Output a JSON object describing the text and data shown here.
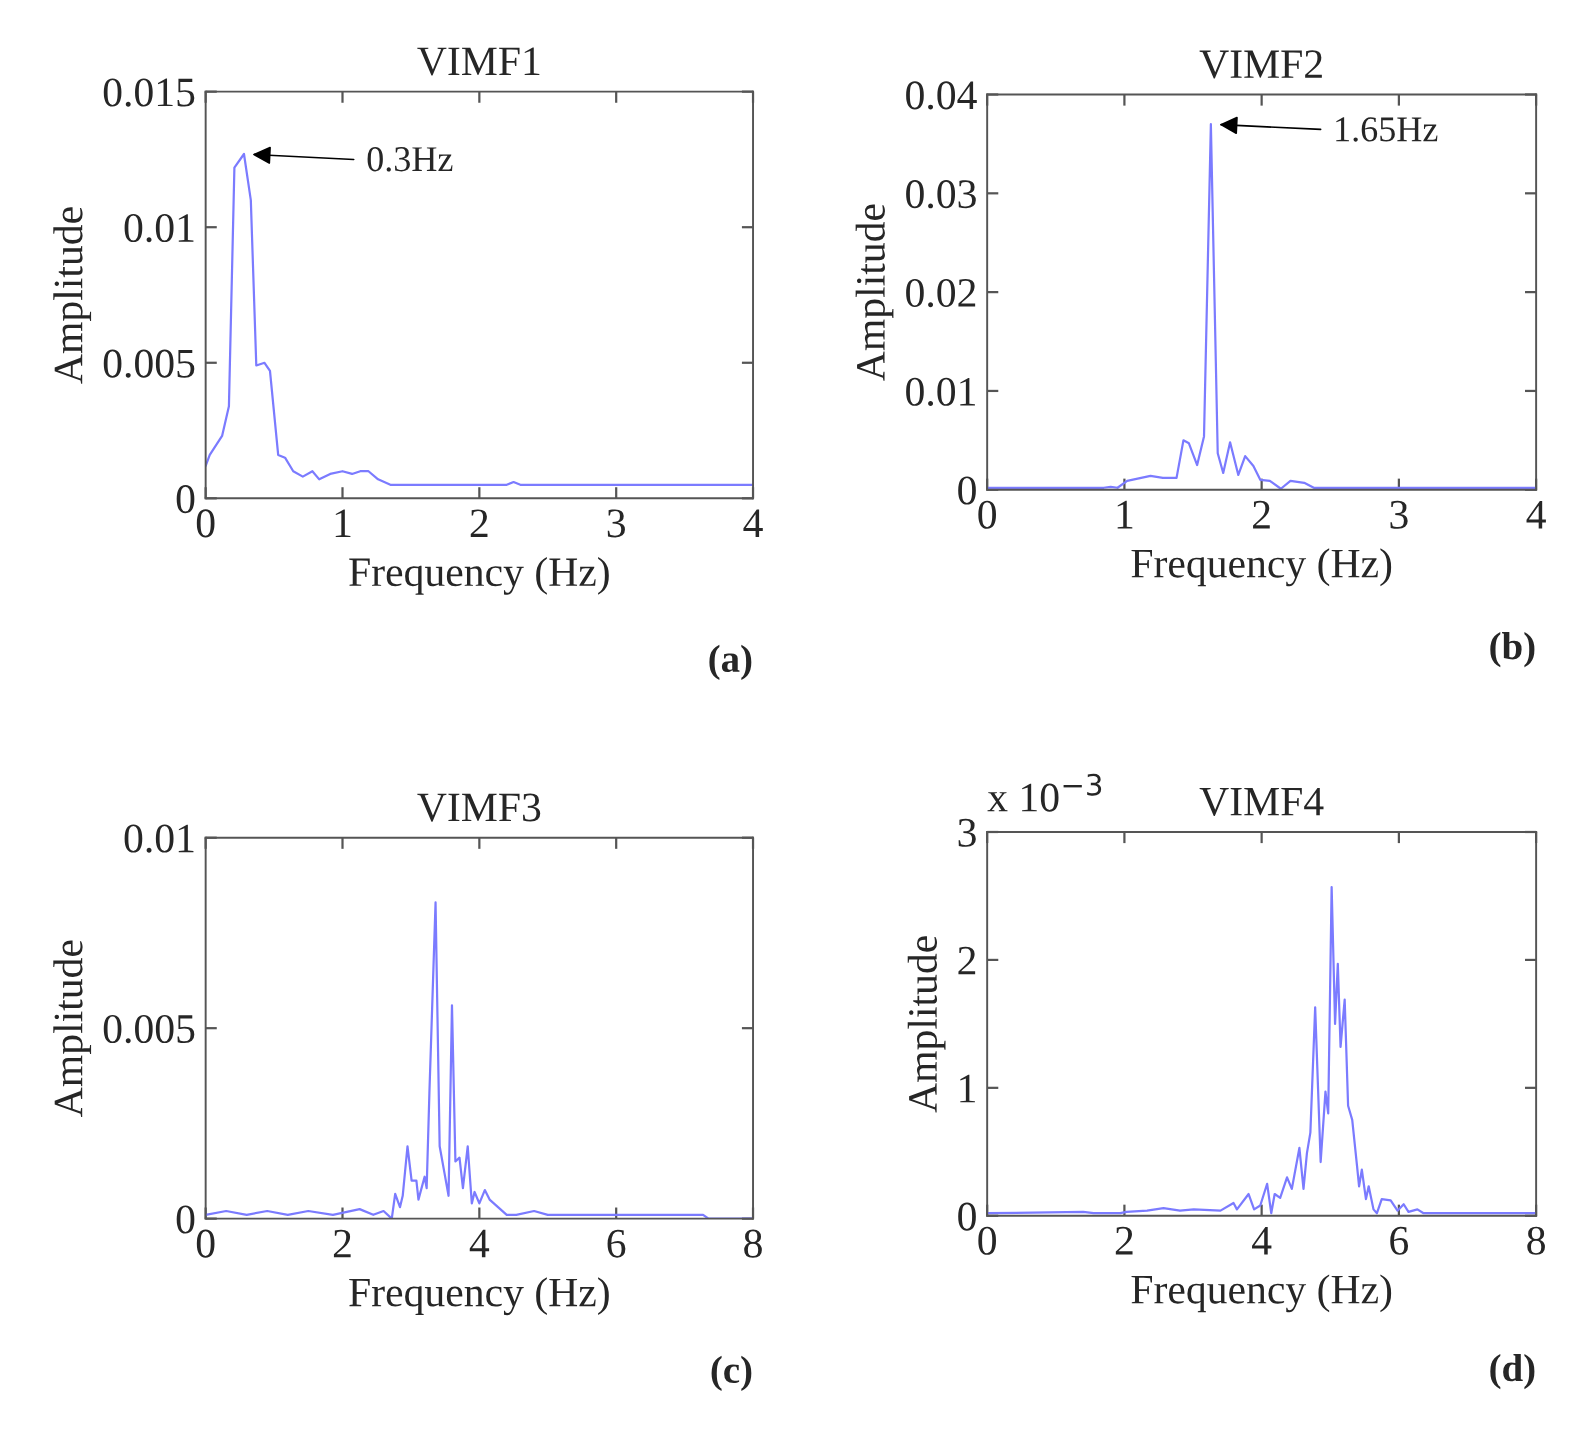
{
  "chart_data": [
    {
      "type": "line",
      "title": "VIMF1",
      "xlabel": "Frequency (Hz)",
      "ylabel": "Amplitude",
      "xlim": [
        0,
        4
      ],
      "ylim": [
        0,
        0.015
      ],
      "xticks": [
        0,
        1,
        2,
        3,
        4
      ],
      "yticks": [
        0,
        0.005,
        0.01,
        0.015
      ],
      "grid": false,
      "annotations": [
        "(a)",
        {
          "text": "0.3Hz",
          "x": 0.28,
          "y": 0.0127
        }
      ],
      "series": [
        {
          "color": "#7b7bff",
          "x": [
            0,
            0.03,
            0.12,
            0.17,
            0.21,
            0.28,
            0.33,
            0.37,
            0.43,
            0.47,
            0.53,
            0.58,
            0.64,
            0.71,
            0.78,
            0.83,
            0.91,
            1.0,
            1.07,
            1.13,
            1.19,
            1.26,
            1.35,
            2.2,
            2.25,
            2.3,
            4
          ],
          "values": [
            0.0012,
            0.0016,
            0.0023,
            0.0034,
            0.0122,
            0.0127,
            0.011,
            0.0049,
            0.005,
            0.0047,
            0.0016,
            0.0015,
            0.001,
            0.0008,
            0.001,
            0.0007,
            0.0009,
            0.001,
            0.0009,
            0.001,
            0.001,
            0.0007,
            0.0005,
            0.0005,
            0.0006,
            0.0005,
            0.0005
          ]
        }
      ]
    },
    {
      "type": "line",
      "title": "VIMF2",
      "xlabel": "Frequency (Hz)",
      "ylabel": "Amplitude",
      "xlim": [
        0,
        4
      ],
      "ylim": [
        0,
        0.04
      ],
      "xticks": [
        0,
        1,
        2,
        3,
        4
      ],
      "yticks": [
        0,
        0.01,
        0.02,
        0.03,
        0.04
      ],
      "grid": false,
      "annotations": [
        "(b)",
        {
          "text": "1.65Hz",
          "x": 1.63,
          "y": 0.037
        }
      ],
      "series": [
        {
          "color": "#7b7bff",
          "x": [
            0,
            0.85,
            0.9,
            0.95,
            1.02,
            1.19,
            1.28,
            1.38,
            1.43,
            1.47,
            1.53,
            1.58,
            1.63,
            1.68,
            1.72,
            1.77,
            1.83,
            1.88,
            1.94,
            1.99,
            2.06,
            2.14,
            2.21,
            2.31,
            2.38,
            4
          ],
          "values": [
            0.0002,
            0.0002,
            0.0003,
            0.0002,
            0.0009,
            0.0014,
            0.0012,
            0.0012,
            0.005,
            0.0047,
            0.0025,
            0.0054,
            0.037,
            0.0037,
            0.0017,
            0.0048,
            0.0015,
            0.0034,
            0.0024,
            0.001,
            0.0009,
            0.0001,
            0.0009,
            0.0007,
            0.0002,
            0.0002
          ]
        }
      ]
    },
    {
      "type": "line",
      "title": "VIMF3",
      "xlabel": "Frequency (Hz)",
      "ylabel": "Amplitude",
      "xlim": [
        0,
        8
      ],
      "ylim": [
        0,
        0.01
      ],
      "xticks": [
        0,
        2,
        4,
        6,
        8
      ],
      "yticks": [
        0,
        0.005,
        0.01
      ],
      "grid": false,
      "annotations": [
        "(c)"
      ],
      "series": [
        {
          "color": "#7b7bff",
          "x": [
            0,
            0.3,
            0.6,
            0.9,
            1.2,
            1.5,
            1.86,
            2.25,
            2.45,
            2.6,
            2.72,
            2.77,
            2.84,
            2.88,
            2.95,
            3.01,
            3.08,
            3.11,
            3.2,
            3.23,
            3.27,
            3.36,
            3.42,
            3.49,
            3.55,
            3.6,
            3.65,
            3.71,
            3.76,
            3.83,
            3.89,
            3.93,
            4.0,
            4.08,
            4.15,
            4.4,
            4.54,
            4.8,
            5.0,
            7.27,
            7.35,
            8
          ],
          "values": [
            0.0001,
            0.0002,
            0.0001,
            0.0002,
            0.0001,
            0.0002,
            0.0001,
            0.00025,
            0.0001,
            0.0002,
            0,
            0.00065,
            0.0003,
            0.0006,
            0.0019,
            0.001,
            0.001,
            0.0005,
            0.0011,
            0.0008,
            0.0033,
            0.0083,
            0.0019,
            0.0012,
            0.0006,
            0.0056,
            0.0015,
            0.0016,
            0.0008,
            0.0019,
            0.0004,
            0.0007,
            0.0004,
            0.00075,
            0.0005,
            0.0001,
            0.0001,
            0.0002,
            0.0001,
            0.0001,
            0,
            0
          ]
        }
      ]
    },
    {
      "type": "line",
      "title": "VIMF4",
      "xlabel": "Frequency (Hz)",
      "ylabel": "Amplitude",
      "xlim": [
        0,
        8
      ],
      "ylim": [
        0,
        3
      ],
      "xticks": [
        0,
        2,
        4,
        6,
        8
      ],
      "yticks": [
        0,
        1,
        2,
        3
      ],
      "grid": false,
      "annotations": [
        "(d)",
        "x 10$^{−3}$"
      ],
      "series": [
        {
          "color": "#7b7bff",
          "x": [
            0,
            1.4,
            1.55,
            1.94,
            2.03,
            2.33,
            2.57,
            2.81,
            3.01,
            3.4,
            3.59,
            3.64,
            3.81,
            3.89,
            3.98,
            4.08,
            4.14,
            4.19,
            4.27,
            4.37,
            4.44,
            4.55,
            4.61,
            4.66,
            4.71,
            4.78,
            4.86,
            4.93,
            4.97,
            5.02,
            5.07,
            5.11,
            5.15,
            5.21,
            5.26,
            5.32,
            5.39,
            5.42,
            5.46,
            5.52,
            5.56,
            5.63,
            5.68,
            5.75,
            5.88,
            5.98,
            6.07,
            6.14,
            6.27,
            6.36,
            8
          ],
          "values": [
            0.02,
            0.03,
            0.02,
            0.02,
            0.03,
            0.04,
            0.06,
            0.04,
            0.05,
            0.04,
            0.1,
            0.05,
            0.17,
            0.05,
            0.08,
            0.25,
            0.02,
            0.17,
            0.14,
            0.3,
            0.21,
            0.53,
            0.21,
            0.49,
            0.65,
            1.63,
            0.42,
            0.97,
            0.8,
            2.57,
            1.5,
            1.97,
            1.32,
            1.69,
            0.86,
            0.75,
            0.39,
            0.23,
            0.36,
            0.13,
            0.23,
            0.05,
            0.02,
            0.13,
            0.12,
            0.04,
            0.09,
            0.03,
            0.05,
            0.02,
            0.02
          ]
        }
      ]
    }
  ]
}
